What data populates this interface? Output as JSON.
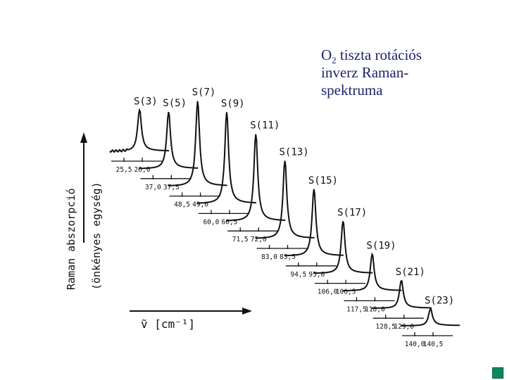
{
  "caption": {
    "line1_pre": "O",
    "line1_sub": "2",
    "line1_post": " tiszta rotációs",
    "line2": "inverz Raman-",
    "line3": "spektruma"
  },
  "axes": {
    "ylabel_1": "Raman abszorpció",
    "ylabel_2": "(önkényes egység)",
    "xlabel": "ṽ  [cm⁻¹]"
  },
  "colors": {
    "caption": "#1f1f6e",
    "nav_button": "#0a8a5a"
  },
  "chart_data": {
    "type": "line",
    "title": "",
    "xlabel": "ṽ [cm⁻¹]",
    "ylabel": "Raman abszorpció (önkényes egység)",
    "layout_note_free": true,
    "series": [
      {
        "name": "S(3)",
        "ticks": [
          "25,5",
          "26,0"
        ],
        "peak": 0.45
      },
      {
        "name": "S(5)",
        "ticks": [
          "37,0",
          "37,5"
        ],
        "peak": 0.62
      },
      {
        "name": "S(7)",
        "ticks": [
          "48,5",
          "49,0"
        ],
        "peak": 0.93
      },
      {
        "name": "S(9)",
        "ticks": [
          "60,0",
          "60,5"
        ],
        "peak": 1.0
      },
      {
        "name": "S(11)",
        "ticks": [
          "71,5",
          "72,0"
        ],
        "peak": 0.95
      },
      {
        "name": "S(13)",
        "ticks": [
          "83,0",
          "83,5"
        ],
        "peak": 0.85
      },
      {
        "name": "S(15)",
        "ticks": [
          "94,5",
          "95,0"
        ],
        "peak": 0.73
      },
      {
        "name": "S(17)",
        "ticks": [
          "106,0",
          "106,5"
        ],
        "peak": 0.57
      },
      {
        "name": "S(19)",
        "ticks": [
          "117,5",
          "118,0"
        ],
        "peak": 0.4
      },
      {
        "name": "S(21)",
        "ticks": [
          "128,5",
          "129,0"
        ],
        "peak": 0.3
      },
      {
        "name": "S(23)",
        "ticks": [
          "140,0",
          "140,5"
        ],
        "peak": 0.18
      }
    ]
  }
}
